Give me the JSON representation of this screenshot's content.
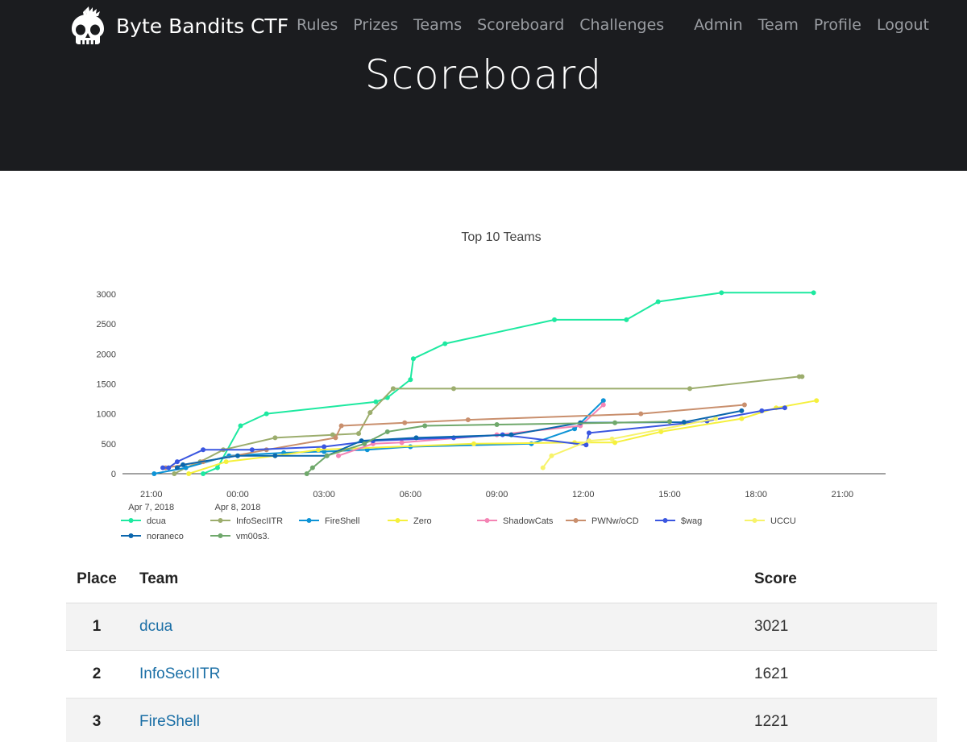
{
  "navbar": {
    "brand": "Byte Bandits CTF",
    "logo_icon": "skull-icon",
    "left_links": [
      "Rules",
      "Prizes",
      "Teams",
      "Scoreboard",
      "Challenges"
    ],
    "right_links": [
      "Admin",
      "Team",
      "Profile",
      "Logout"
    ]
  },
  "page": {
    "title": "Scoreboard"
  },
  "chart_data": {
    "type": "line",
    "title": "Top 10 Teams",
    "x_ticks": [
      {
        "label": "21:00",
        "sublabel": "Apr 7, 2018",
        "h": 21
      },
      {
        "label": "00:00",
        "sublabel": "Apr 8, 2018",
        "h": 24
      },
      {
        "label": "03:00",
        "sublabel": "",
        "h": 27
      },
      {
        "label": "06:00",
        "sublabel": "",
        "h": 30
      },
      {
        "label": "09:00",
        "sublabel": "",
        "h": 33
      },
      {
        "label": "12:00",
        "sublabel": "",
        "h": 36
      },
      {
        "label": "15:00",
        "sublabel": "",
        "h": 39
      },
      {
        "label": "18:00",
        "sublabel": "",
        "h": 42
      },
      {
        "label": "21:00",
        "sublabel": "",
        "h": 45
      }
    ],
    "y_ticks": [
      0,
      500,
      1000,
      1500,
      2000,
      2500,
      3000
    ],
    "xlim": [
      20,
      46.5
    ],
    "ylim": [
      0,
      3200
    ],
    "x_unit": "hours since Apr 7, 2018 00:00",
    "legend_position": "bottom",
    "series": [
      {
        "name": "dcua",
        "color": "#1de9a0",
        "points": [
          [
            22.8,
            0
          ],
          [
            23.3,
            100
          ],
          [
            24.1,
            800
          ],
          [
            25.0,
            1000
          ],
          [
            28.8,
            1200
          ],
          [
            29.2,
            1270
          ],
          [
            30.0,
            1570
          ],
          [
            30.1,
            1920
          ],
          [
            31.2,
            2170
          ],
          [
            35.0,
            2570
          ],
          [
            37.5,
            2570
          ],
          [
            38.6,
            2870
          ],
          [
            40.8,
            3021
          ],
          [
            44.0,
            3021
          ]
        ]
      },
      {
        "name": "InfoSecIITR",
        "color": "#9cad6d",
        "points": [
          [
            21.8,
            0
          ],
          [
            22.2,
            100
          ],
          [
            22.7,
            200
          ],
          [
            23.5,
            400
          ],
          [
            25.3,
            600
          ],
          [
            27.3,
            650
          ],
          [
            28.2,
            670
          ],
          [
            28.6,
            1020
          ],
          [
            29.4,
            1420
          ],
          [
            31.5,
            1420
          ],
          [
            39.7,
            1420
          ],
          [
            43.5,
            1621
          ],
          [
            43.6,
            1621
          ]
        ]
      },
      {
        "name": "FireShell",
        "color": "#0c93d6",
        "points": [
          [
            21.1,
            0
          ],
          [
            22.2,
            100
          ],
          [
            23.7,
            300
          ],
          [
            25.6,
            350
          ],
          [
            27.0,
            370
          ],
          [
            28.5,
            400
          ],
          [
            30.0,
            450
          ],
          [
            34.2,
            500
          ],
          [
            35.7,
            750
          ],
          [
            36.7,
            1221
          ]
        ]
      },
      {
        "name": "Zero",
        "color": "#f5f03c",
        "points": [
          [
            22.3,
            0
          ],
          [
            23.6,
            200
          ],
          [
            25.3,
            300
          ],
          [
            26.8,
            400
          ],
          [
            32.2,
            500
          ],
          [
            35.7,
            520
          ],
          [
            37.1,
            520
          ],
          [
            38.7,
            700
          ],
          [
            41.5,
            920
          ],
          [
            42.7,
            1100
          ],
          [
            44.1,
            1221
          ]
        ]
      },
      {
        "name": "ShadowCats",
        "color": "#f484b4",
        "points": [
          [
            27.5,
            300
          ],
          [
            28.7,
            500
          ],
          [
            29.7,
            520
          ],
          [
            33.0,
            650
          ],
          [
            35.9,
            800
          ],
          [
            36.7,
            1150
          ]
        ]
      },
      {
        "name": "PWNw/oCD",
        "color": "#c98f6d",
        "points": [
          [
            21.5,
            100
          ],
          [
            22.8,
            200
          ],
          [
            25.0,
            400
          ],
          [
            27.4,
            600
          ],
          [
            27.6,
            800
          ],
          [
            29.8,
            850
          ],
          [
            32.0,
            900
          ],
          [
            38.0,
            1000
          ],
          [
            41.6,
            1150
          ]
        ]
      },
      {
        "name": "$wag",
        "color": "#3a56e0",
        "points": [
          [
            21.4,
            100
          ],
          [
            21.6,
            100
          ],
          [
            21.9,
            200
          ],
          [
            22.8,
            400
          ],
          [
            24.5,
            400
          ],
          [
            27.0,
            450
          ],
          [
            28.7,
            550
          ],
          [
            31.5,
            600
          ],
          [
            33.2,
            650
          ],
          [
            36.1,
            480
          ],
          [
            36.2,
            680
          ],
          [
            40.3,
            880
          ],
          [
            42.2,
            1050
          ],
          [
            43.0,
            1100
          ]
        ]
      },
      {
        "name": "UCCU",
        "color": "#f7f36a",
        "points": [
          [
            34.6,
            100
          ],
          [
            34.9,
            300
          ],
          [
            36.2,
            550
          ],
          [
            37.0,
            580
          ],
          [
            40.6,
            920
          ]
        ]
      },
      {
        "name": "noraneco",
        "color": "#0a66ad",
        "points": [
          [
            21.9,
            100
          ],
          [
            22.1,
            150
          ],
          [
            24.0,
            300
          ],
          [
            25.3,
            300
          ],
          [
            27.1,
            300
          ],
          [
            28.3,
            550
          ],
          [
            30.2,
            600
          ],
          [
            33.5,
            650
          ],
          [
            35.9,
            850
          ],
          [
            39.5,
            860
          ],
          [
            41.5,
            1050
          ]
        ]
      },
      {
        "name": "vm00s3.",
        "color": "#6fa86b",
        "points": [
          [
            26.4,
            0
          ],
          [
            26.6,
            100
          ],
          [
            27.1,
            300
          ],
          [
            28.4,
            500
          ],
          [
            29.2,
            700
          ],
          [
            30.5,
            800
          ],
          [
            33.0,
            820
          ],
          [
            37.1,
            850
          ],
          [
            39.0,
            870
          ]
        ]
      }
    ]
  },
  "scoreboard": {
    "headers": {
      "place": "Place",
      "team": "Team",
      "score": "Score"
    },
    "rows": [
      {
        "place": "1",
        "team": "dcua",
        "score": "3021"
      },
      {
        "place": "2",
        "team": "InfoSecIITR",
        "score": "1621"
      },
      {
        "place": "3",
        "team": "FireShell",
        "score": "1221"
      }
    ]
  }
}
